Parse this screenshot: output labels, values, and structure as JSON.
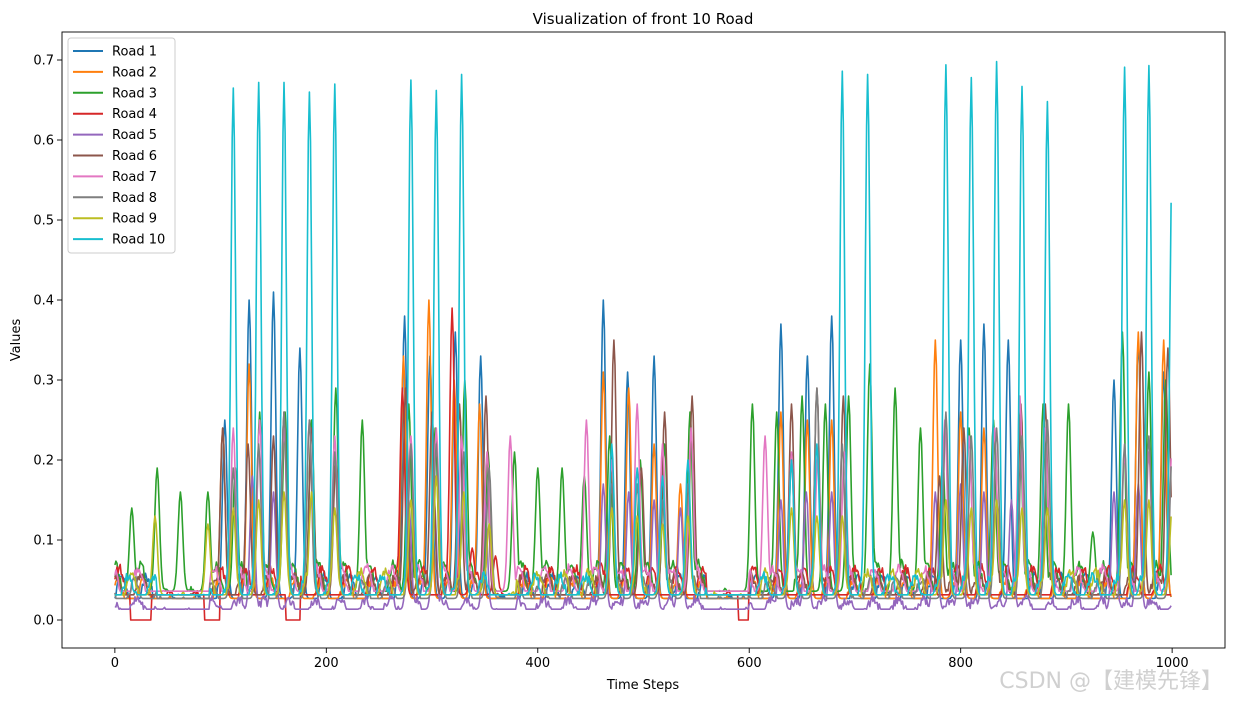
{
  "chart_data": {
    "type": "line",
    "title": "Visualization of front 10 Road",
    "xlabel": "Time Steps",
    "ylabel": "Values",
    "xlim": [
      -50,
      1050
    ],
    "ylim": [
      -0.035,
      0.735
    ],
    "xticks": [
      0,
      200,
      400,
      600,
      800,
      1000
    ],
    "yticks": [
      0.0,
      0.1,
      0.2,
      0.3,
      0.4,
      0.5,
      0.6,
      0.7
    ],
    "grid": false,
    "legend_position": "top-left",
    "n_points": 1000,
    "series": [
      {
        "name": "Road 1",
        "color": "#1f77b4",
        "peaks": [
          [
            104,
            0.25
          ],
          [
            127,
            0.4
          ],
          [
            150,
            0.41
          ],
          [
            175,
            0.34
          ],
          [
            274,
            0.38
          ],
          [
            298,
            0.33
          ],
          [
            322,
            0.36
          ],
          [
            346,
            0.33
          ],
          [
            462,
            0.4
          ],
          [
            485,
            0.31
          ],
          [
            510,
            0.33
          ],
          [
            630,
            0.37
          ],
          [
            655,
            0.33
          ],
          [
            678,
            0.38
          ],
          [
            800,
            0.35
          ],
          [
            822,
            0.37
          ],
          [
            845,
            0.35
          ],
          [
            945,
            0.3
          ],
          [
            968,
            0.35
          ],
          [
            992,
            0.31
          ]
        ]
      },
      {
        "name": "Road 2",
        "color": "#ff7f0e",
        "peaks": [
          [
            102,
            0.24
          ],
          [
            127,
            0.32
          ],
          [
            273,
            0.33
          ],
          [
            297,
            0.4
          ],
          [
            321,
            0.3
          ],
          [
            345,
            0.27
          ],
          [
            462,
            0.31
          ],
          [
            486,
            0.29
          ],
          [
            510,
            0.22
          ],
          [
            535,
            0.17
          ],
          [
            630,
            0.26
          ],
          [
            655,
            0.25
          ],
          [
            678,
            0.25
          ],
          [
            776,
            0.35
          ],
          [
            800,
            0.26
          ],
          [
            822,
            0.24
          ],
          [
            968,
            0.36
          ],
          [
            992,
            0.35
          ]
        ]
      },
      {
        "name": "Road 3",
        "color": "#2ca02c",
        "peaks": [
          [
            16,
            0.14
          ],
          [
            40,
            0.19
          ],
          [
            62,
            0.16
          ],
          [
            88,
            0.16
          ],
          [
            114,
            0.19
          ],
          [
            137,
            0.26
          ],
          [
            161,
            0.26
          ],
          [
            186,
            0.25
          ],
          [
            209,
            0.29
          ],
          [
            234,
            0.25
          ],
          [
            278,
            0.27
          ],
          [
            303,
            0.24
          ],
          [
            331,
            0.3
          ],
          [
            353,
            0.21
          ],
          [
            378,
            0.21
          ],
          [
            400,
            0.19
          ],
          [
            423,
            0.19
          ],
          [
            444,
            0.18
          ],
          [
            468,
            0.23
          ],
          [
            497,
            0.2
          ],
          [
            520,
            0.22
          ],
          [
            544,
            0.26
          ],
          [
            603,
            0.27
          ],
          [
            626,
            0.26
          ],
          [
            650,
            0.28
          ],
          [
            672,
            0.27
          ],
          [
            694,
            0.28
          ],
          [
            714,
            0.32
          ],
          [
            738,
            0.29
          ],
          [
            762,
            0.24
          ],
          [
            783,
            0.2
          ],
          [
            808,
            0.24
          ],
          [
            831,
            0.25
          ],
          [
            856,
            0.24
          ],
          [
            878,
            0.27
          ],
          [
            902,
            0.27
          ],
          [
            925,
            0.11
          ],
          [
            953,
            0.36
          ],
          [
            978,
            0.31
          ],
          [
            994,
            0.3
          ]
        ]
      },
      {
        "name": "Road 4",
        "color": "#d62728",
        "peaks": [
          [
            272,
            0.29
          ],
          [
            319,
            0.39
          ],
          [
            338,
            0.09
          ],
          [
            360,
            0.08
          ]
        ]
      },
      {
        "name": "Road 5",
        "color": "#9467bd",
        "peaks": [
          [
            130,
            0.18
          ],
          [
            150,
            0.16
          ],
          [
            278,
            0.15
          ],
          [
            302,
            0.15
          ],
          [
            350,
            0.15
          ],
          [
            462,
            0.17
          ],
          [
            486,
            0.16
          ],
          [
            510,
            0.15
          ],
          [
            535,
            0.14
          ],
          [
            630,
            0.15
          ],
          [
            654,
            0.16
          ],
          [
            678,
            0.16
          ],
          [
            776,
            0.16
          ],
          [
            800,
            0.17
          ],
          [
            822,
            0.16
          ],
          [
            848,
            0.15
          ],
          [
            945,
            0.16
          ],
          [
            968,
            0.17
          ]
        ]
      },
      {
        "name": "Road 6",
        "color": "#8c564b",
        "peaks": [
          [
            102,
            0.24
          ],
          [
            126,
            0.22
          ],
          [
            150,
            0.23
          ],
          [
            160,
            0.26
          ],
          [
            186,
            0.24
          ],
          [
            209,
            0.2
          ],
          [
            275,
            0.29
          ],
          [
            300,
            0.26
          ],
          [
            326,
            0.27
          ],
          [
            351,
            0.28
          ],
          [
            472,
            0.35
          ],
          [
            498,
            0.19
          ],
          [
            520,
            0.26
          ],
          [
            546,
            0.28
          ],
          [
            640,
            0.27
          ],
          [
            664,
            0.29
          ],
          [
            689,
            0.28
          ],
          [
            780,
            0.18
          ],
          [
            803,
            0.24
          ],
          [
            832,
            0.24
          ],
          [
            857,
            0.27
          ],
          [
            880,
            0.27
          ],
          [
            971,
            0.36
          ],
          [
            996,
            0.34
          ]
        ]
      },
      {
        "name": "Road 7",
        "color": "#e377c2",
        "peaks": [
          [
            112,
            0.24
          ],
          [
            137,
            0.25
          ],
          [
            160,
            0.24
          ],
          [
            184,
            0.25
          ],
          [
            208,
            0.23
          ],
          [
            280,
            0.23
          ],
          [
            304,
            0.24
          ],
          [
            328,
            0.23
          ],
          [
            352,
            0.21
          ],
          [
            374,
            0.23
          ],
          [
            446,
            0.25
          ],
          [
            470,
            0.2
          ],
          [
            494,
            0.27
          ],
          [
            518,
            0.22
          ],
          [
            545,
            0.24
          ],
          [
            615,
            0.23
          ],
          [
            640,
            0.21
          ],
          [
            665,
            0.21
          ],
          [
            690,
            0.21
          ],
          [
            785,
            0.25
          ],
          [
            808,
            0.23
          ],
          [
            832,
            0.24
          ],
          [
            856,
            0.28
          ],
          [
            880,
            0.24
          ],
          [
            955,
            0.21
          ],
          [
            978,
            0.21
          ],
          [
            1000,
            0.22
          ]
        ]
      },
      {
        "name": "Road 8",
        "color": "#7f7f7f",
        "peaks": [
          [
            112,
            0.19
          ],
          [
            136,
            0.22
          ],
          [
            160,
            0.26
          ],
          [
            184,
            0.25
          ],
          [
            208,
            0.21
          ],
          [
            280,
            0.22
          ],
          [
            304,
            0.22
          ],
          [
            330,
            0.21
          ],
          [
            354,
            0.19
          ],
          [
            470,
            0.17
          ],
          [
            494,
            0.17
          ],
          [
            518,
            0.15
          ],
          [
            542,
            0.17
          ],
          [
            640,
            0.2
          ],
          [
            664,
            0.29
          ],
          [
            688,
            0.22
          ],
          [
            786,
            0.26
          ],
          [
            810,
            0.23
          ],
          [
            834,
            0.24
          ],
          [
            858,
            0.23
          ],
          [
            882,
            0.25
          ],
          [
            955,
            0.22
          ],
          [
            978,
            0.23
          ],
          [
            1000,
            0.21
          ]
        ]
      },
      {
        "name": "Road 9",
        "color": "#bcbd22",
        "peaks": [
          [
            38,
            0.13
          ],
          [
            88,
            0.12
          ],
          [
            112,
            0.14
          ],
          [
            136,
            0.15
          ],
          [
            160,
            0.16
          ],
          [
            186,
            0.16
          ],
          [
            208,
            0.14
          ],
          [
            280,
            0.15
          ],
          [
            304,
            0.18
          ],
          [
            330,
            0.16
          ],
          [
            354,
            0.12
          ],
          [
            470,
            0.14
          ],
          [
            494,
            0.13
          ],
          [
            518,
            0.12
          ],
          [
            542,
            0.13
          ],
          [
            640,
            0.14
          ],
          [
            664,
            0.13
          ],
          [
            688,
            0.13
          ],
          [
            786,
            0.15
          ],
          [
            810,
            0.14
          ],
          [
            834,
            0.15
          ],
          [
            858,
            0.14
          ],
          [
            882,
            0.14
          ],
          [
            955,
            0.15
          ],
          [
            978,
            0.15
          ],
          [
            1000,
            0.14
          ]
        ]
      },
      {
        "name": "Road 10",
        "color": "#17becf",
        "peaks": [
          [
            112,
            0.665
          ],
          [
            136,
            0.672
          ],
          [
            160,
            0.672
          ],
          [
            184,
            0.66
          ],
          [
            208,
            0.67
          ],
          [
            280,
            0.675
          ],
          [
            304,
            0.662
          ],
          [
            328,
            0.682
          ],
          [
            470,
            0.22
          ],
          [
            494,
            0.19
          ],
          [
            518,
            0.18
          ],
          [
            542,
            0.2
          ],
          [
            640,
            0.2
          ],
          [
            664,
            0.22
          ],
          [
            688,
            0.686
          ],
          [
            712,
            0.682
          ],
          [
            786,
            0.694
          ],
          [
            810,
            0.678
          ],
          [
            834,
            0.698
          ],
          [
            858,
            0.667
          ],
          [
            882,
            0.648
          ],
          [
            955,
            0.691
          ],
          [
            978,
            0.693
          ],
          [
            1000,
            0.575
          ]
        ]
      }
    ]
  },
  "watermark": "CSDN @【建模先锋】"
}
